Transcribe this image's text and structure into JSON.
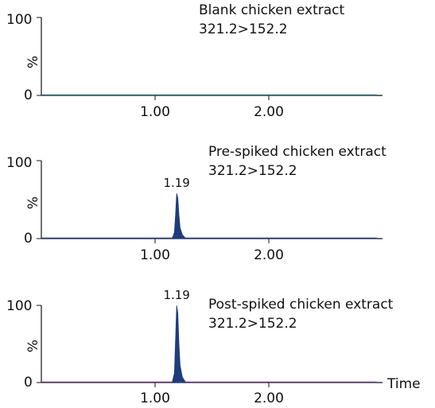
{
  "chart_data": [
    {
      "type": "line",
      "title": "Blank chicken extract",
      "subtitle": "321.2>152.2",
      "xlabel": "",
      "ylabel": "%",
      "xlim": [
        0,
        3.0
      ],
      "ylim": [
        0,
        100
      ],
      "x_ticks": [
        "1.00",
        "2.00"
      ],
      "y_ticks": [
        "0",
        "100"
      ],
      "peak": null,
      "series": [
        {
          "color": "#1f3d7a",
          "baseline_color": "#2e8b57",
          "x": [
            0.0,
            2.95
          ],
          "y": [
            0,
            0
          ]
        }
      ]
    },
    {
      "type": "line",
      "title": "Pre-spiked chicken extract",
      "subtitle": "321.2>152.2",
      "xlabel": "",
      "ylabel": "%",
      "xlim": [
        0,
        3.0
      ],
      "ylim": [
        0,
        100
      ],
      "x_ticks": [
        "1.00",
        "2.00"
      ],
      "y_ticks": [
        "0",
        "100"
      ],
      "peak": {
        "x": 1.19,
        "label": "1.19"
      },
      "series": [
        {
          "color": "#1f3d7a",
          "baseline_color": "#1f3d7a",
          "x": [
            0.0,
            1.15,
            1.17,
            1.18,
            1.19,
            1.2,
            1.21,
            1.22,
            1.24,
            1.27,
            2.95
          ],
          "y": [
            0,
            0,
            8,
            30,
            58,
            52,
            30,
            14,
            5,
            0,
            0
          ]
        }
      ]
    },
    {
      "type": "line",
      "title": "Post-spiked chicken extract",
      "subtitle": "321.2>152.2",
      "xlabel": "Time",
      "ylabel": "%",
      "xlim": [
        0,
        3.0
      ],
      "ylim": [
        0,
        100
      ],
      "x_ticks": [
        "1.00",
        "2.00"
      ],
      "y_ticks": [
        "0",
        "100"
      ],
      "peak": {
        "x": 1.19,
        "label": "1.19"
      },
      "series": [
        {
          "color": "#1f3d7a",
          "baseline_color": "#b03060",
          "x": [
            0.0,
            1.15,
            1.17,
            1.18,
            1.19,
            1.2,
            1.21,
            1.22,
            1.24,
            1.27,
            2.95
          ],
          "y": [
            0,
            0,
            12,
            55,
            100,
            90,
            50,
            22,
            7,
            0,
            0
          ]
        }
      ]
    }
  ]
}
